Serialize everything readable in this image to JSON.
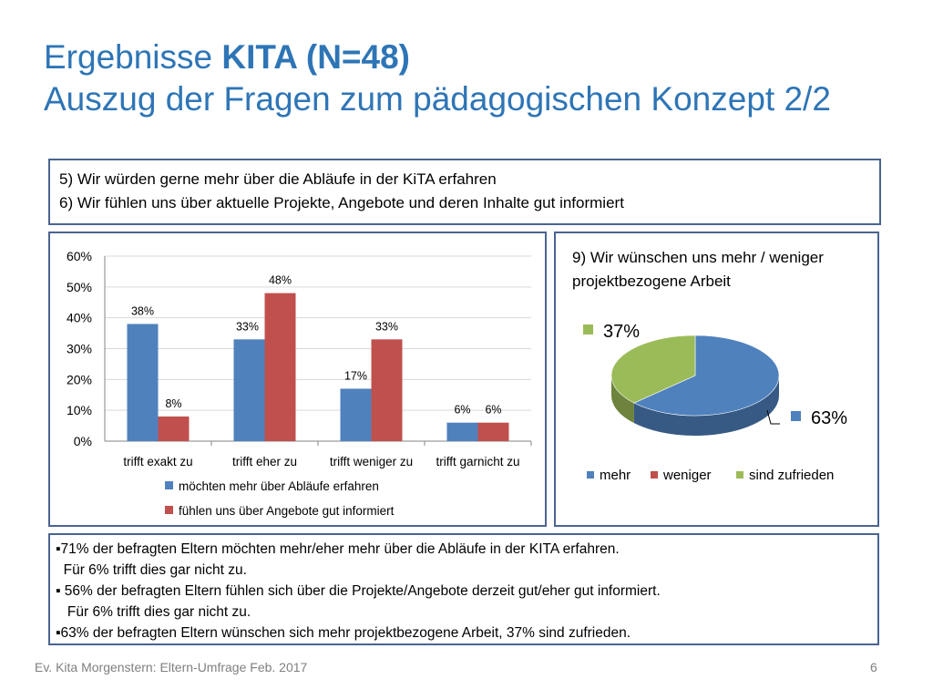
{
  "title": {
    "prefix": "Ergebnisse ",
    "bold": "KITA (N=48)",
    "line2": "Auszug der Fragen zum pädagogischen Konzept 2/2"
  },
  "questions": [
    "5) Wir würden gerne mehr über die Abläufe in der KiTA erfahren",
    "6) Wir fühlen uns über aktuelle Projekte, Angebote und deren Inhalte gut informiert"
  ],
  "chart_data": [
    {
      "type": "bar",
      "categories": [
        "trifft exakt zu",
        "trifft eher zu",
        "trifft weniger zu",
        "trifft garnicht zu"
      ],
      "series": [
        {
          "name": "möchten mehr über Abläufe erfahren",
          "values": [
            38,
            33,
            17,
            6
          ],
          "labels": [
            "38%",
            "33%",
            "17%",
            "6%"
          ],
          "color": "#4f81bd"
        },
        {
          "name": "fühlen uns über Angebote gut informiert",
          "values": [
            8,
            48,
            33,
            6
          ],
          "labels": [
            "8%",
            "48%",
            "33%",
            "6%"
          ],
          "color": "#c0504d"
        }
      ],
      "ylim": [
        0,
        60
      ],
      "yticks": [
        "0%",
        "10%",
        "20%",
        "30%",
        "40%",
        "50%",
        "60%"
      ],
      "grid": true,
      "legend": "bottom"
    },
    {
      "type": "pie",
      "title": "9) Wir wünschen uns mehr / weniger projektbezogene Arbeit",
      "categories": [
        "mehr",
        "weniger",
        "sind zufrieden"
      ],
      "values": [
        63,
        0,
        37
      ],
      "labels": [
        "63%",
        "",
        "37%"
      ],
      "colors": [
        "#4f81bd",
        "#c0504d",
        "#9bbb59"
      ],
      "legend": "bottom"
    }
  ],
  "summary": [
    "▪71% der befragten Eltern möchten  mehr/eher mehr über die Abläufe in der KITA erfahren.",
    "  Für 6% trifft dies gar nicht zu.",
    "▪ 56% der befragten Eltern fühlen sich über die Projekte/Angebote derzeit gut/eher gut informiert.",
    "   Für 6% trifft dies gar nicht zu.",
    "▪63% der befragten Eltern wünschen sich mehr projektbezogene Arbeit, 37% sind zufrieden."
  ],
  "footer": {
    "source": "Ev. Kita Morgenstern: Eltern-Umfrage Feb. 2017",
    "page": "6"
  }
}
